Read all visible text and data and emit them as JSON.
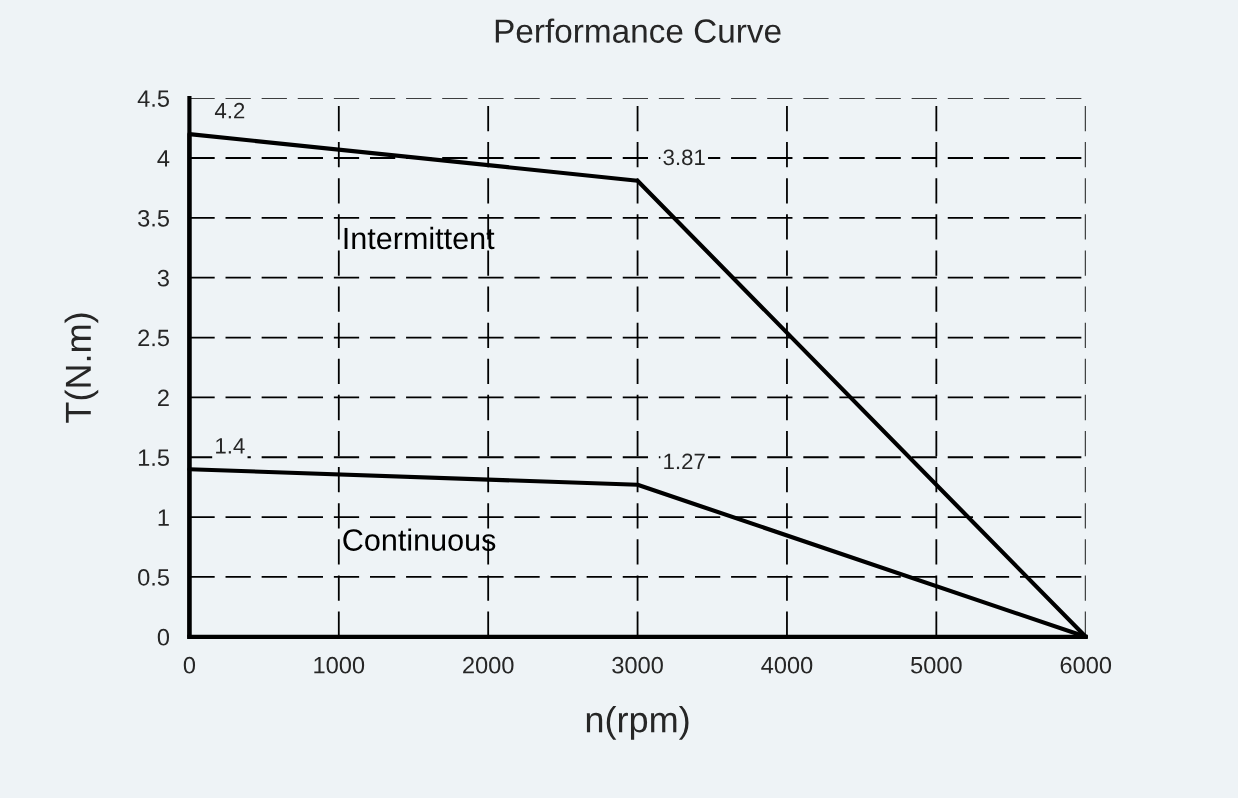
{
  "chart_data": {
    "type": "line",
    "title": "Performance Curve",
    "xlabel": "n(rpm)",
    "ylabel": "T(N.m)",
    "series": [
      {
        "name": "Intermittent",
        "color": "#000000",
        "x": [
          0,
          0,
          3000,
          6000
        ],
        "values": [
          0,
          4.2,
          3.81,
          0
        ],
        "value_labels": [
          null,
          "4.2",
          "3.81",
          null
        ]
      },
      {
        "name": "Continuous",
        "color": "#000000",
        "x": [
          0,
          3000,
          6000
        ],
        "values": [
          1.4,
          1.27,
          0
        ],
        "value_labels": [
          "1.4",
          "1.27",
          null
        ]
      }
    ],
    "xlim": [
      0,
      6000
    ],
    "xticks": [
      0,
      1000,
      2000,
      3000,
      4000,
      5000,
      6000
    ],
    "ylim": [
      0,
      4.5
    ],
    "yticks": [
      0,
      0.5,
      1,
      1.5,
      2,
      2.5,
      3,
      3.5,
      4,
      4.5
    ],
    "grid": true,
    "line_style": "solid",
    "marker": "none",
    "legend": false
  }
}
